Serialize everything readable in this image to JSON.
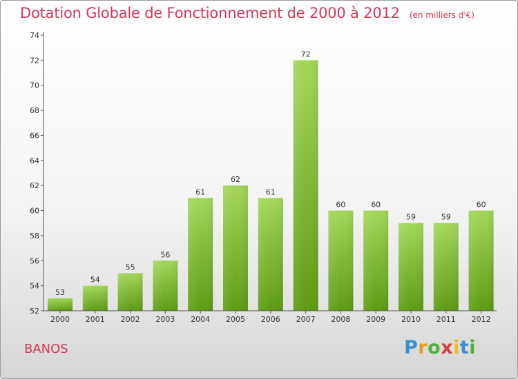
{
  "header": {
    "title": "Dotation Globale de Fonctionnement de 2000 à 2012",
    "unit": "(en milliers d'€)"
  },
  "footer": {
    "commune": "BANOS",
    "logo_text": "Proxiti"
  },
  "colors": {
    "title": "#d13a57",
    "bar_top": "#a4d65a",
    "bar_bottom": "#5e9a14"
  },
  "chart_data": {
    "type": "bar",
    "title": "Dotation Globale de Fonctionnement de 2000 à 2012",
    "subtitle": "(en milliers d'€)",
    "xlabel": "",
    "ylabel": "",
    "categories": [
      "2000",
      "2001",
      "2002",
      "2003",
      "2004",
      "2005",
      "2006",
      "2007",
      "2008",
      "2009",
      "2010",
      "2011",
      "2012"
    ],
    "values": [
      53,
      54,
      55,
      56,
      61,
      62,
      61,
      72,
      60,
      60,
      59,
      59,
      60
    ],
    "ylim": [
      52,
      74
    ],
    "yticks": [
      52,
      54,
      56,
      58,
      60,
      62,
      64,
      66,
      68,
      70,
      72,
      74
    ],
    "grid": false,
    "legend": "none"
  }
}
